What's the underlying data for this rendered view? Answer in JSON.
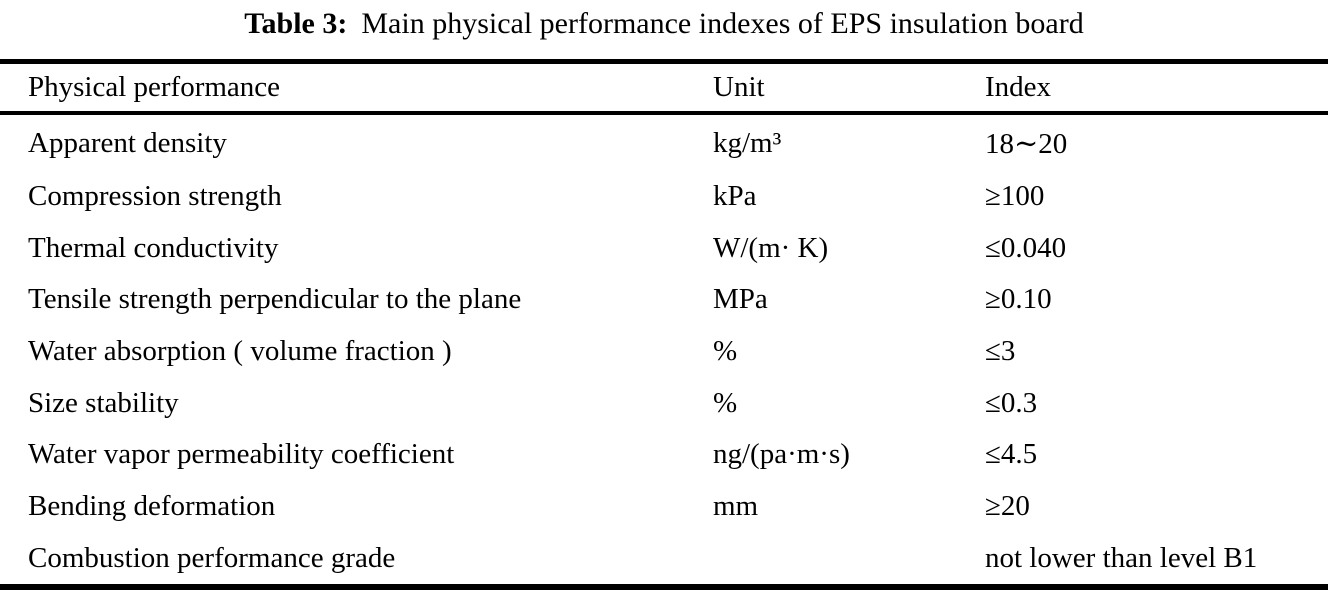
{
  "title": {
    "label": "Table 3:",
    "text": "Main physical performance indexes of EPS insulation board"
  },
  "table": {
    "columns": [
      "Physical performance",
      "Unit",
      "Index"
    ],
    "rows": [
      {
        "name": "Apparent density",
        "unit": "kg/m³",
        "index": "18∼20"
      },
      {
        "name": "Compression strength",
        "unit": "kPa",
        "index": "≥100"
      },
      {
        "name": "Thermal conductivity",
        "unit": "W/(m· K)",
        "index": "≤0.040"
      },
      {
        "name": "Tensile strength perpendicular to the plane",
        "unit": "MPa",
        "index": "≥0.10"
      },
      {
        "name": "Water absorption ( volume fraction )",
        "unit": "%",
        "index": "≤3"
      },
      {
        "name": "Size stability",
        "unit": "%",
        "index": "≤0.3"
      },
      {
        "name": "Water vapor permeability coefficient",
        "unit": "ng/(pa·m·s)",
        "index": "≤4.5"
      },
      {
        "name": "Bending deformation",
        "unit": "mm",
        "index": "≥20"
      },
      {
        "name": "Combustion performance grade",
        "unit": "",
        "index": "not lower than level B1"
      }
    ]
  }
}
